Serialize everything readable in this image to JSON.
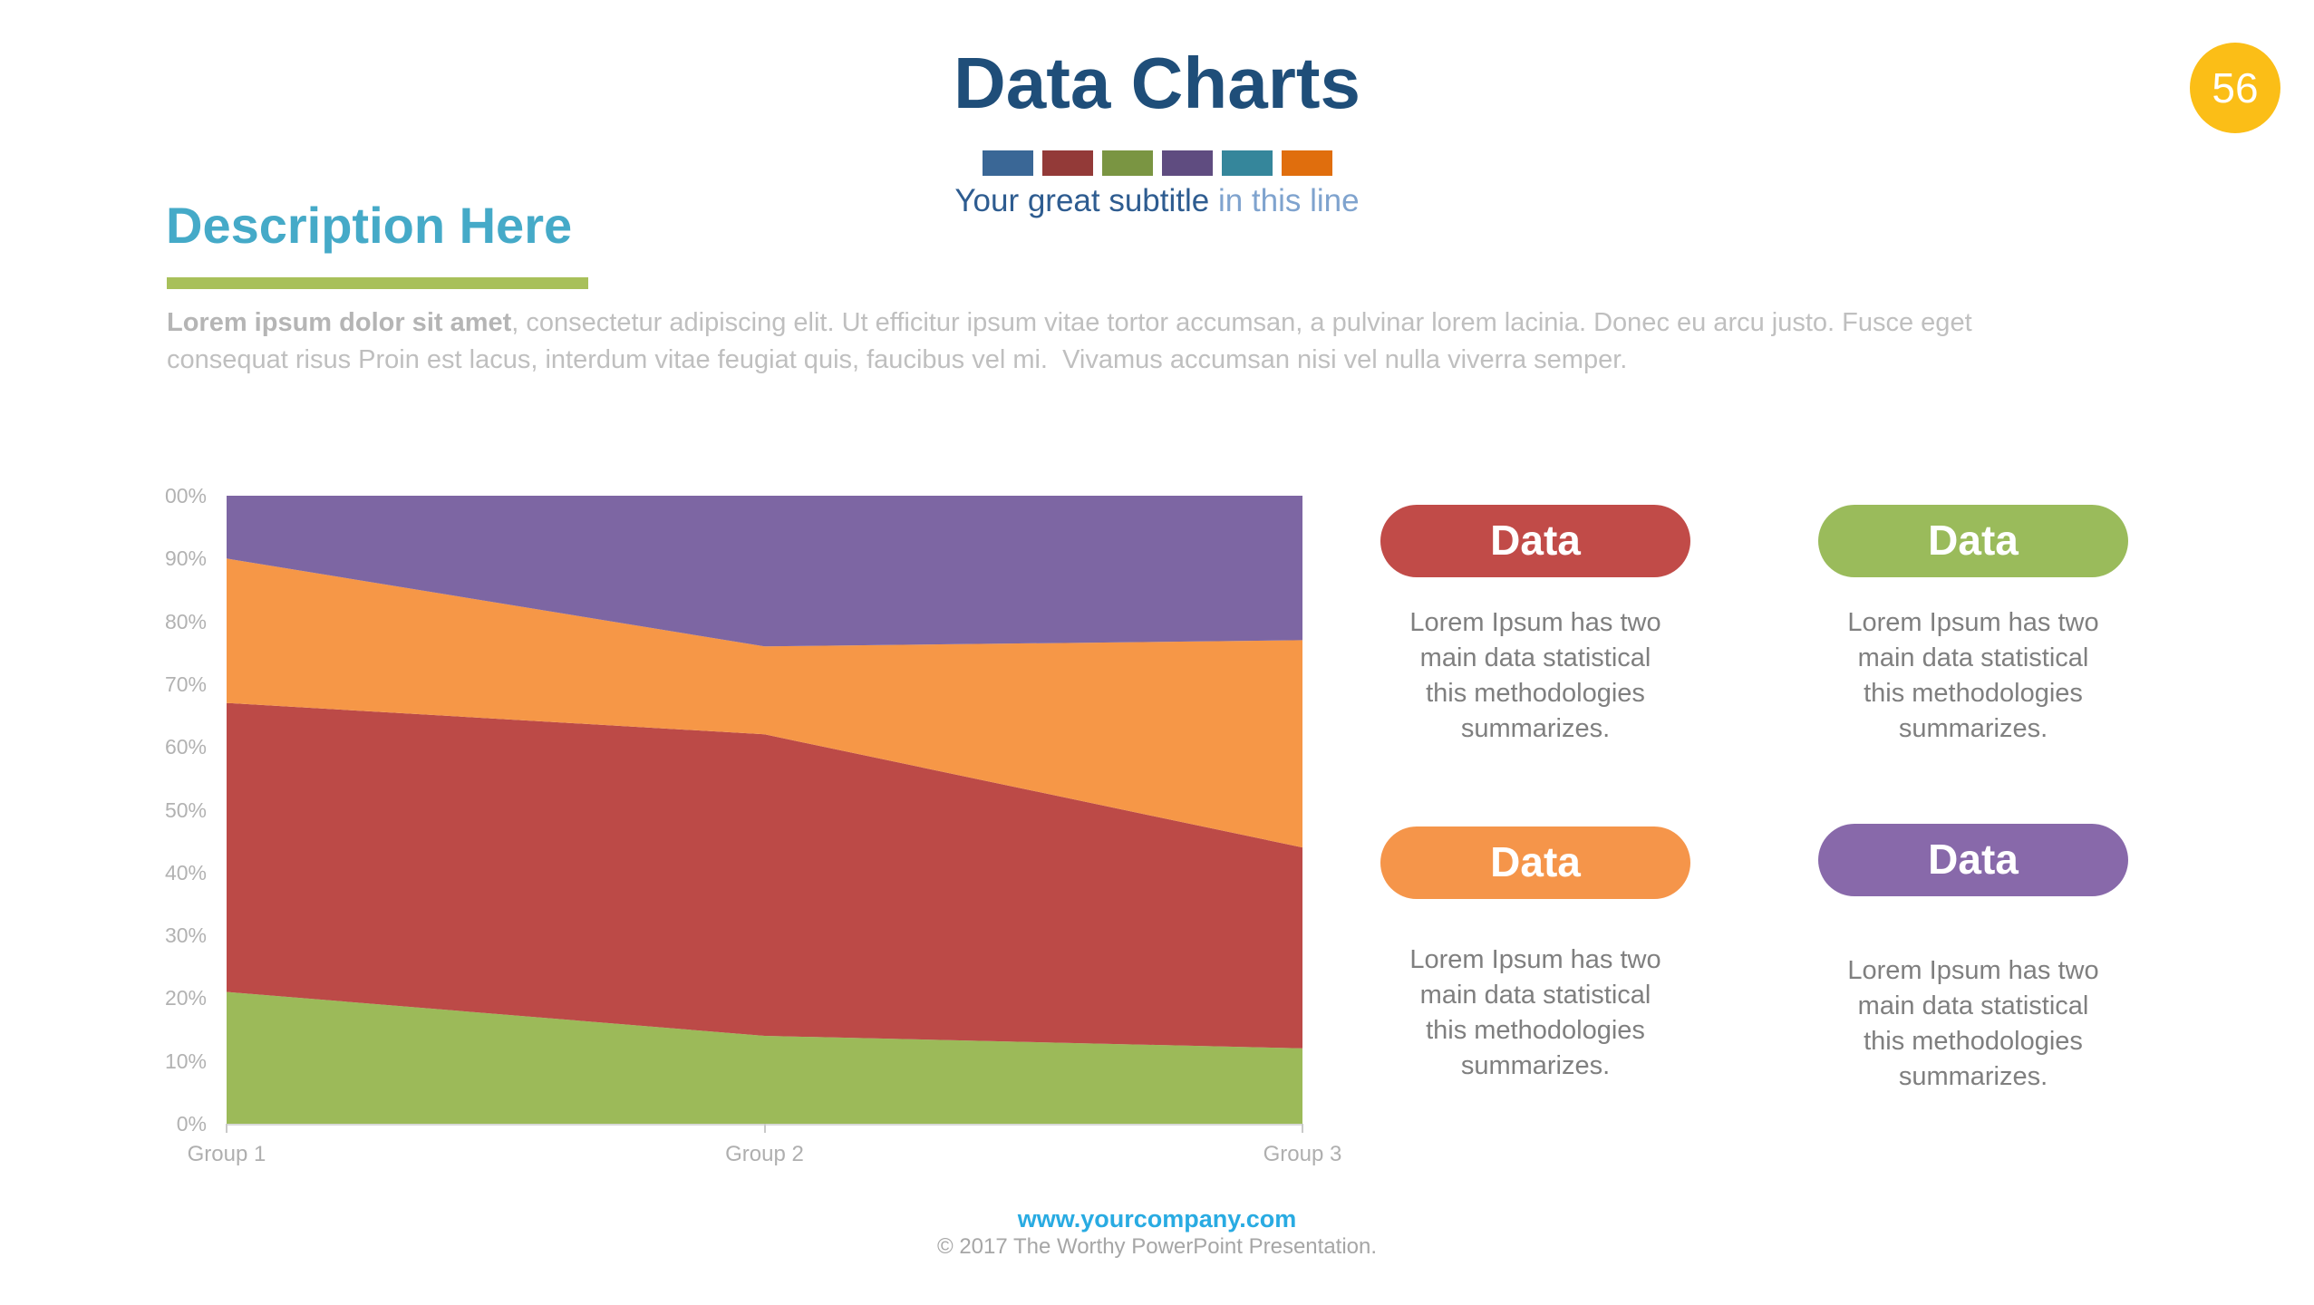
{
  "slide": {
    "page_number": "56",
    "title": "Data Charts",
    "subtitle_main": "Your great subtitle",
    "subtitle_light": " in this line",
    "palette_squares": [
      "#3A6796",
      "#933A38",
      "#7A9542",
      "#5F4C80",
      "#35869B",
      "#E06E0D"
    ],
    "badge_color": "#FBBE17",
    "title_color": "#1F4E79"
  },
  "description": {
    "heading": "Description Here",
    "heading_color": "#45AAC8",
    "underline_color": "#A8C05A",
    "body_bold": "Lorem ipsum dolor sit amet",
    "body_rest": ", consectetur adipiscing elit. Ut efficitur ipsum vitae tortor accumsan, a pulvinar lorem lacinia. Donec eu arcu justo. Fusce eget consequat risus Proin est lacus, interdum vitae feugiat quis, faucibus vel mi.  Vivamus accumsan nisi vel nulla viverra semper."
  },
  "chart_data": {
    "type": "area",
    "stacked": true,
    "title": "",
    "categories": [
      "Group 1",
      "Group 2",
      "Group 3"
    ],
    "series": [
      {
        "name": "green",
        "color": "#9CBA59",
        "values": [
          21,
          14,
          12
        ]
      },
      {
        "name": "red",
        "color": "#BC4A47",
        "values": [
          46,
          48,
          32
        ]
      },
      {
        "name": "orange",
        "color": "#F69747",
        "values": [
          23,
          14,
          33
        ]
      },
      {
        "name": "purple",
        "color": "#7D66A3",
        "values": [
          10,
          24,
          23
        ]
      }
    ],
    "ylim": [
      0,
      100
    ],
    "ytick_step": 10,
    "ytick_labels": [
      "0%",
      "10%",
      "20%",
      "30%",
      "40%",
      "50%",
      "60%",
      "70%",
      "80%",
      "90%",
      "00%"
    ],
    "grid": false,
    "legend": false
  },
  "cards": [
    {
      "label": "Data",
      "color": "#C14B48",
      "body": "Lorem Ipsum has two\nmain data statistical\nthis methodologies\nsummarizes."
    },
    {
      "label": "Data",
      "color": "#9ABB5B",
      "body": "Lorem Ipsum has two\nmain data statistical\nthis methodologies\nsummarizes."
    },
    {
      "label": "Data",
      "color": "#F5954A",
      "body": "Lorem Ipsum has two\nmain data statistical\nthis methodologies\nsummarizes."
    },
    {
      "label": "Data",
      "color": "#8869AA",
      "body": "Lorem Ipsum has two\nmain data statistical\nthis methodologies\nsummarizes."
    }
  ],
  "footer": {
    "url": "www.yourcompany.com",
    "copyright": "© 2017 The Worthy PowerPoint Presentation."
  }
}
